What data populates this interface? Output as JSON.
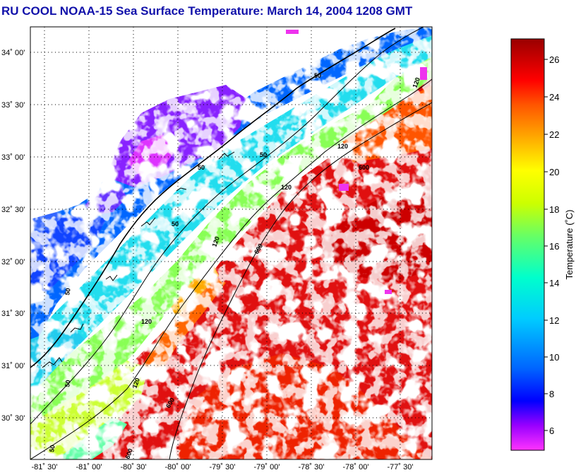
{
  "title": "RU COOL  NOAA-15  Sea Surface Temperature:  March 14, 2004 1208 GMT",
  "map": {
    "lat_labels": [
      "34˚ 00'",
      "33˚ 30'",
      "33˚ 00'",
      "32˚ 30'",
      "32˚ 00'",
      "31˚ 30'",
      "31˚ 00'",
      "30˚ 30'"
    ],
    "lon_labels": [
      "-81˚ 30'",
      "-81˚ 00'",
      "-80˚ 30'",
      "-80˚ 00'",
      "-79˚ 30'",
      "-79˚ 00'",
      "-78˚ 30'",
      "-78˚ 00'",
      "-77˚ 30'"
    ],
    "isobath_labels": [
      "50",
      "50",
      "50",
      "50",
      "50",
      "50",
      "50",
      "120",
      "120",
      "120",
      "120",
      "120",
      "120",
      "600",
      "600",
      "600",
      "600"
    ],
    "grid": true
  },
  "colorbar": {
    "label": "Temperature (˚C)",
    "ticks": [
      "26",
      "24",
      "22",
      "20",
      "18",
      "16",
      "14",
      "12",
      "10",
      "8",
      "6"
    ],
    "colors": [
      "#ff33ff",
      "#9900ff",
      "#0000ff",
      "#0066ff",
      "#00ccff",
      "#00ffcc",
      "#66ff66",
      "#ccff00",
      "#ffff00",
      "#ffaa00",
      "#ff5500",
      "#ff0000",
      "#cc0000",
      "#990000"
    ]
  }
}
